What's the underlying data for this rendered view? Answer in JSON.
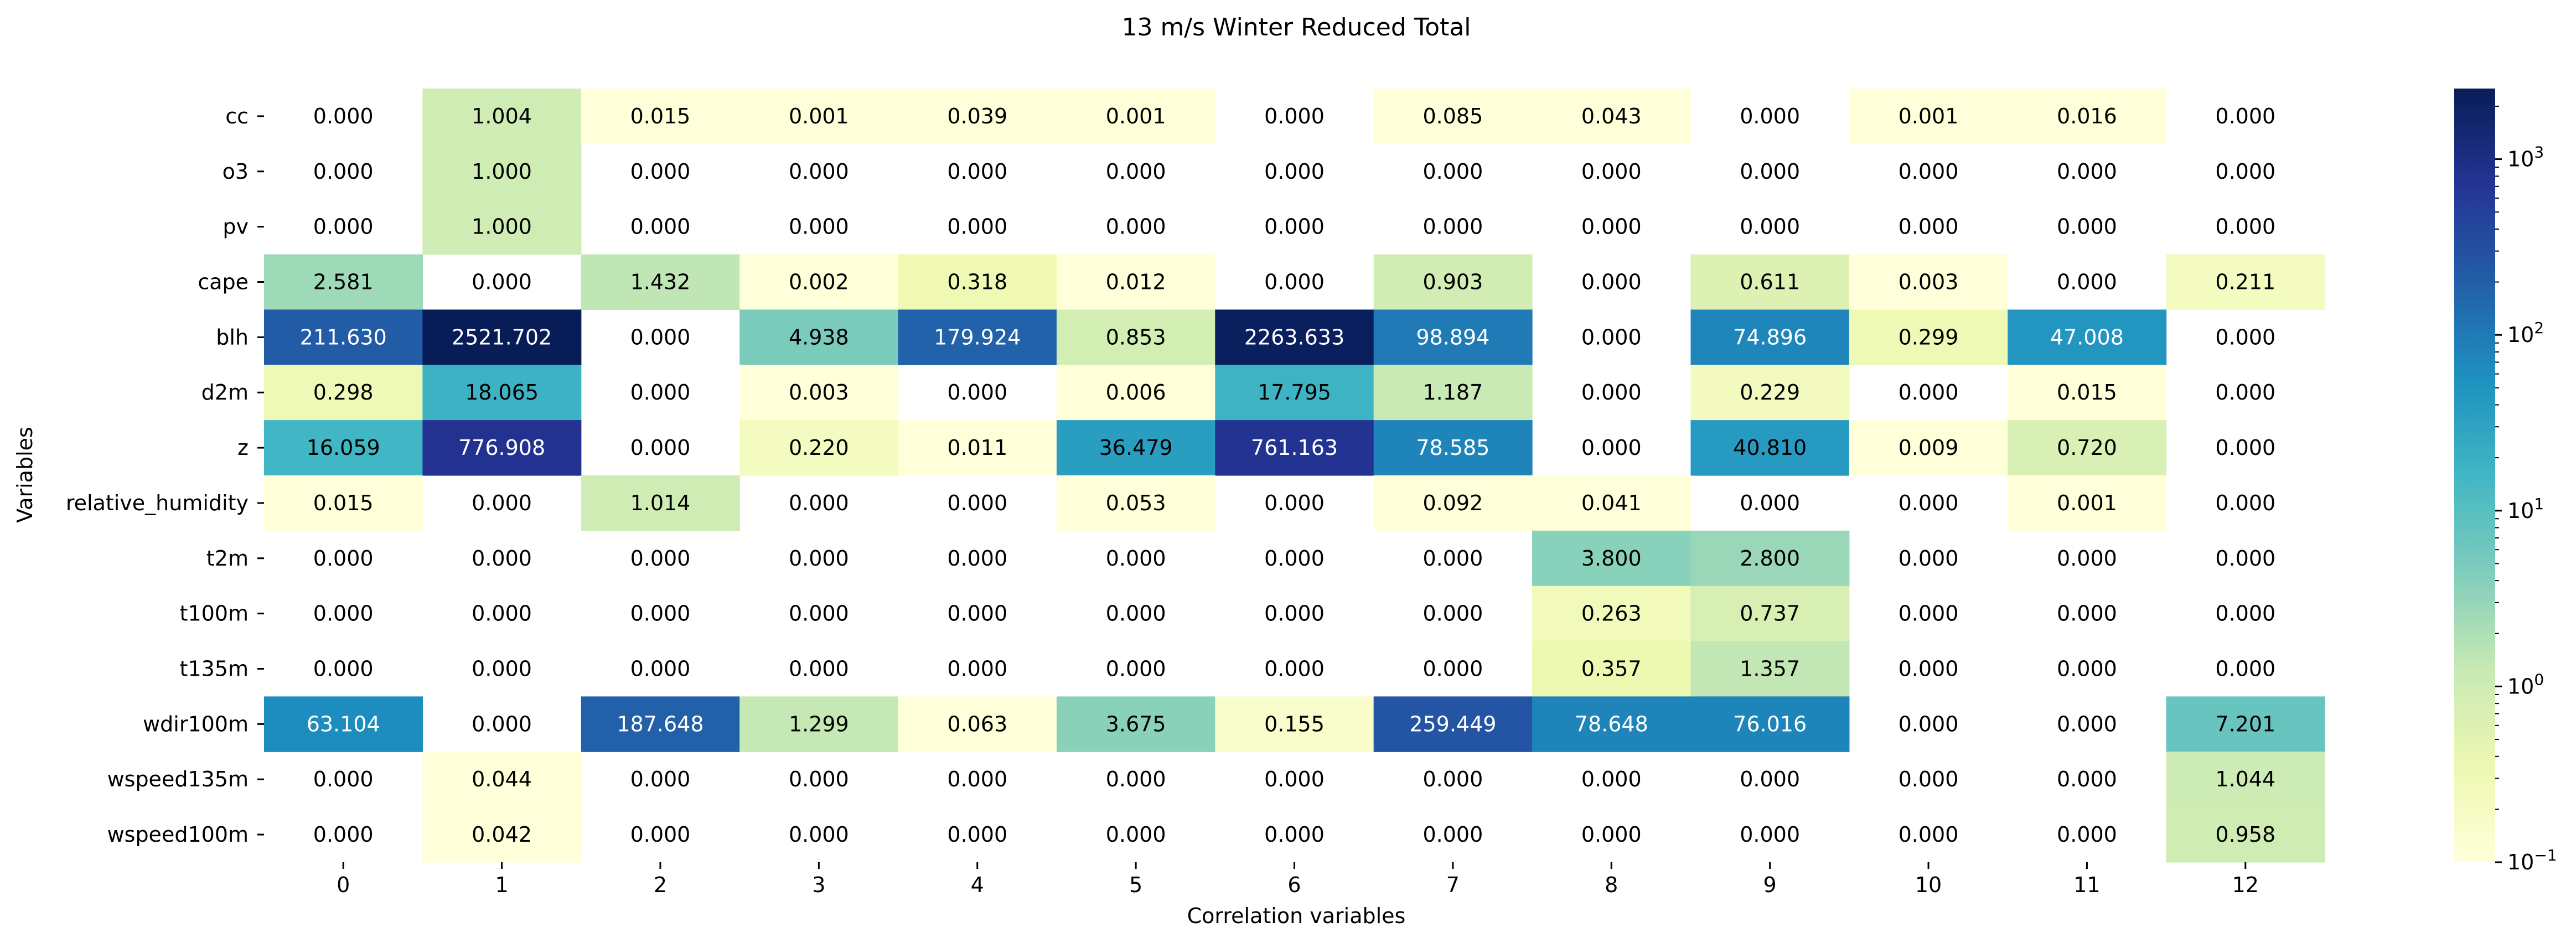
{
  "chart_data": {
    "type": "heatmap",
    "title": "13 m/s Winter Reduced Total",
    "xlabel": "Correlation variables",
    "ylabel": "Variables",
    "x_categories": [
      "0",
      "1",
      "2",
      "3",
      "4",
      "5",
      "6",
      "7",
      "8",
      "9",
      "10",
      "11",
      "12"
    ],
    "y_categories": [
      "cc",
      "o3",
      "pv",
      "cape",
      "blh",
      "d2m",
      "z",
      "relative_humidity",
      "t2m",
      "t100m",
      "t135m",
      "wdir100m",
      "wspeed135m",
      "wspeed100m"
    ],
    "values": [
      [
        "0.000",
        "1.004",
        "0.015",
        "0.001",
        "0.039",
        "0.001",
        "0.000",
        "0.085",
        "0.043",
        "0.000",
        "0.001",
        "0.016",
        "0.000"
      ],
      [
        "0.000",
        "1.000",
        "0.000",
        "0.000",
        "0.000",
        "0.000",
        "0.000",
        "0.000",
        "0.000",
        "0.000",
        "0.000",
        "0.000",
        "0.000"
      ],
      [
        "0.000",
        "1.000",
        "0.000",
        "0.000",
        "0.000",
        "0.000",
        "0.000",
        "0.000",
        "0.000",
        "0.000",
        "0.000",
        "0.000",
        "0.000"
      ],
      [
        "2.581",
        "0.000",
        "1.432",
        "0.002",
        "0.318",
        "0.012",
        "0.000",
        "0.903",
        "0.000",
        "0.611",
        "0.003",
        "0.000",
        "0.211"
      ],
      [
        "211.630",
        "2521.702",
        "0.000",
        "4.938",
        "179.924",
        "0.853",
        "2263.633",
        "98.894",
        "0.000",
        "74.896",
        "0.299",
        "47.008",
        "0.000"
      ],
      [
        "0.298",
        "18.065",
        "0.000",
        "0.003",
        "0.000",
        "0.006",
        "17.795",
        "1.187",
        "0.000",
        "0.229",
        "0.000",
        "0.015",
        "0.000"
      ],
      [
        "16.059",
        "776.908",
        "0.000",
        "0.220",
        "0.011",
        "36.479",
        "761.163",
        "78.585",
        "0.000",
        "40.810",
        "0.009",
        "0.720",
        "0.000"
      ],
      [
        "0.015",
        "0.000",
        "1.014",
        "0.000",
        "0.000",
        "0.053",
        "0.000",
        "0.092",
        "0.041",
        "0.000",
        "0.000",
        "0.001",
        "0.000"
      ],
      [
        "0.000",
        "0.000",
        "0.000",
        "0.000",
        "0.000",
        "0.000",
        "0.000",
        "0.000",
        "3.800",
        "2.800",
        "0.000",
        "0.000",
        "0.000"
      ],
      [
        "0.000",
        "0.000",
        "0.000",
        "0.000",
        "0.000",
        "0.000",
        "0.000",
        "0.000",
        "0.263",
        "0.737",
        "0.000",
        "0.000",
        "0.000"
      ],
      [
        "0.000",
        "0.000",
        "0.000",
        "0.000",
        "0.000",
        "0.000",
        "0.000",
        "0.000",
        "0.357",
        "1.357",
        "0.000",
        "0.000",
        "0.000"
      ],
      [
        "63.104",
        "0.000",
        "187.648",
        "1.299",
        "0.063",
        "3.675",
        "0.155",
        "259.449",
        "78.648",
        "76.016",
        "0.000",
        "0.000",
        "7.201"
      ],
      [
        "0.000",
        "0.044",
        "0.000",
        "0.000",
        "0.000",
        "0.000",
        "0.000",
        "0.000",
        "0.000",
        "0.000",
        "0.000",
        "0.000",
        "1.044"
      ],
      [
        "0.000",
        "0.042",
        "0.000",
        "0.000",
        "0.000",
        "0.000",
        "0.000",
        "0.000",
        "0.000",
        "0.000",
        "0.000",
        "0.000",
        "0.958"
      ]
    ],
    "scale": "log",
    "colormap": "YlGnBu",
    "vmin": 0.1,
    "vmax": 2521.702,
    "zero_cells": "blank",
    "colorbar": {
      "tick_labels": [
        {
          "value": 0.1,
          "base": "10",
          "exp": "−1"
        },
        {
          "value": 1,
          "base": "10",
          "exp": "0"
        },
        {
          "value": 10,
          "base": "10",
          "exp": "1"
        },
        {
          "value": 100,
          "base": "10",
          "exp": "2"
        },
        {
          "value": 1000,
          "base": "10",
          "exp": "3"
        }
      ]
    }
  }
}
